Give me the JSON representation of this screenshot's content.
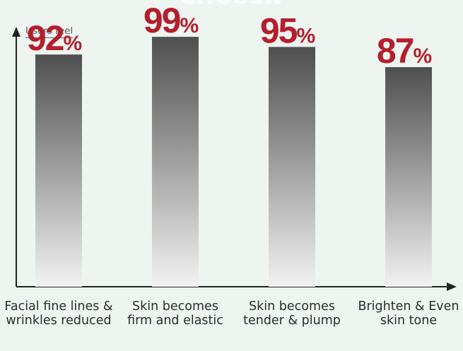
{
  "header_fragment": "CHOSEN",
  "chart_data": {
    "type": "bar",
    "title": "",
    "ylabel": "Users feel",
    "xlabel": "",
    "ylim": [
      0,
      108
    ],
    "categories": [
      [
        "Facial fine lines &",
        "wrinkles reduced"
      ],
      [
        "Skin becomes",
        "firm and elastic"
      ],
      [
        "Skin becomes",
        "tender & plump"
      ],
      [
        "Brighten & Even",
        "skin tone"
      ]
    ],
    "values": [
      92,
      99,
      95,
      87
    ],
    "value_suffix": "%",
    "grid": false,
    "legend": "none"
  },
  "colors": {
    "label_red": "#b51e2c",
    "bar_dark": "#4f4f4f",
    "bar_light": "#f2f2f2",
    "axis": "#222222",
    "category_text": "#2c2c2c"
  }
}
